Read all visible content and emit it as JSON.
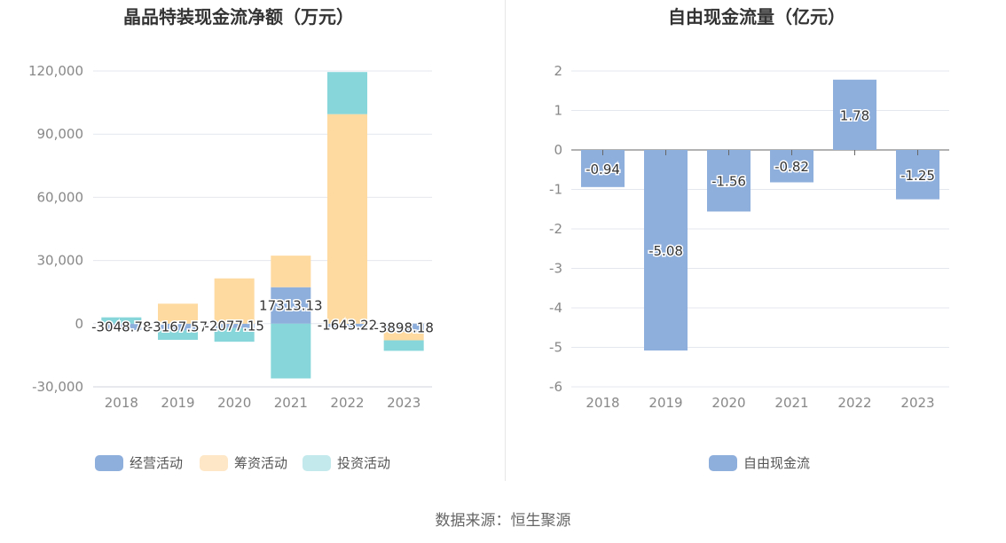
{
  "colors": {
    "operating": "#8eaedc",
    "financing": "#fedaa0",
    "investing": "#86d6da",
    "legend_operating": "#8eaedc",
    "legend_financing": "#fee7c6",
    "legend_investing": "#c3e9ec",
    "free_cash": "#8eaedc",
    "grid": "#e4e7ee",
    "axis_text": "#888888",
    "title": "#333333"
  },
  "chart_data": [
    {
      "type": "bar",
      "stacked": true,
      "title": "晶品特装现金流净额（万元）",
      "categories": [
        "2018",
        "2019",
        "2020",
        "2021",
        "2022",
        "2023"
      ],
      "ylim": [
        -30000,
        120000
      ],
      "yticks": [
        -30000,
        0,
        30000,
        60000,
        90000,
        120000
      ],
      "ytick_labels": [
        "-30,000",
        "0",
        "30,000",
        "60,000",
        "90,000",
        "120,000"
      ],
      "series": [
        {
          "name": "经营活动",
          "values": [
            -3048.78,
            -3167.57,
            -2077.15,
            17313.13,
            -1643.22,
            -3898.18
          ],
          "labels": [
            "-3048.78",
            "-3167.57",
            "-2077.15",
            "17313.13",
            "-1643.22",
            "-3898.18"
          ]
        },
        {
          "name": "筹资活动",
          "values": [
            0,
            9500,
            21500,
            15000,
            99500,
            -4000
          ]
        },
        {
          "name": "投资活动",
          "values": [
            3000,
            -4500,
            -6500,
            -26000,
            20000,
            -5000
          ]
        }
      ],
      "legend_position": "bottom"
    },
    {
      "type": "bar",
      "title": "自由现金流量（亿元）",
      "categories": [
        "2018",
        "2019",
        "2020",
        "2021",
        "2022",
        "2023"
      ],
      "ylim": [
        -6,
        2
      ],
      "yticks": [
        -6,
        -5,
        -4,
        -3,
        -2,
        -1,
        0,
        1,
        2
      ],
      "ytick_labels": [
        "-6",
        "-5",
        "-4",
        "-3",
        "-2",
        "-1",
        "0",
        "1",
        "2"
      ],
      "series": [
        {
          "name": "自由现金流",
          "values": [
            -0.94,
            -5.08,
            -1.56,
            -0.82,
            1.78,
            -1.25
          ],
          "labels": [
            "-0.94",
            "-5.08",
            "-1.56",
            "-0.82",
            "1.78",
            "-1.25"
          ]
        }
      ],
      "legend_position": "bottom"
    }
  ],
  "footer": {
    "source": "数据来源：恒生聚源"
  }
}
